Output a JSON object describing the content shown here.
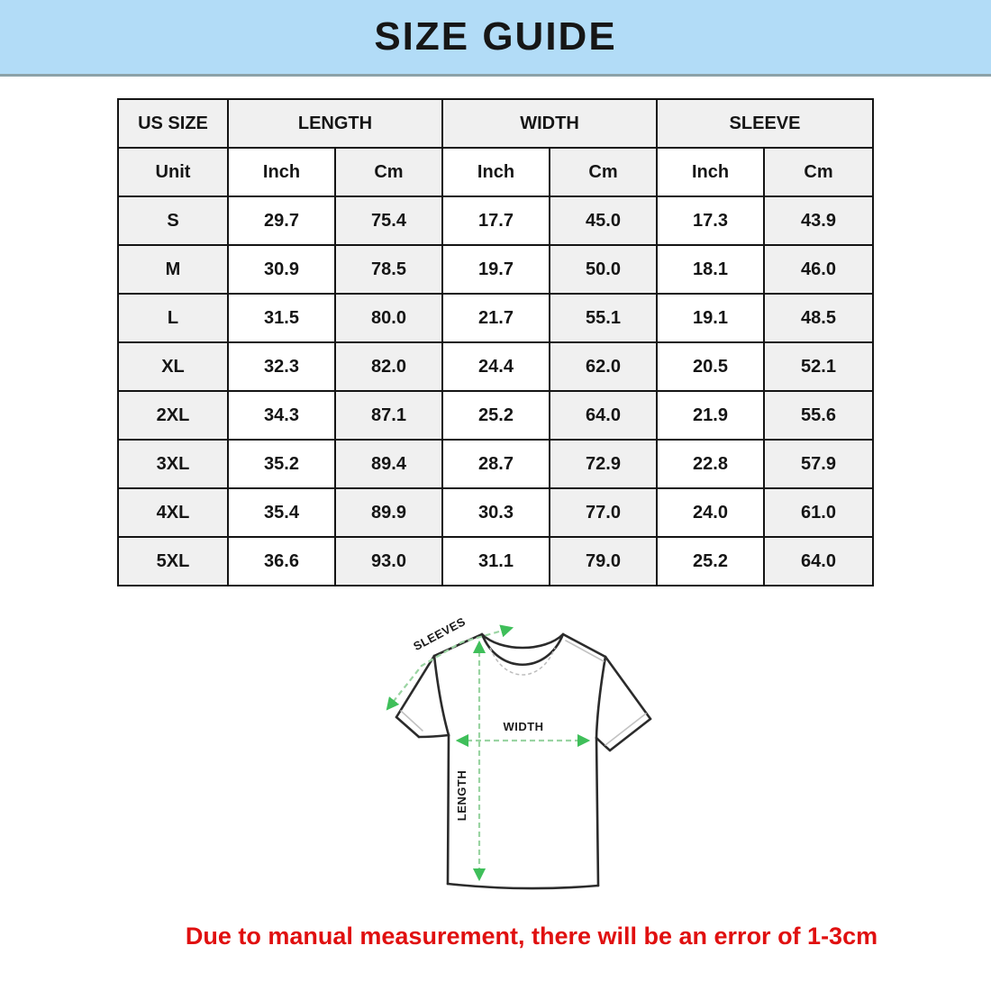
{
  "title": "SIZE GUIDE",
  "table": {
    "group_headers": [
      {
        "label": "US SIZE",
        "span": 1
      },
      {
        "label": "LENGTH",
        "span": 2
      },
      {
        "label": "WIDTH",
        "span": 2
      },
      {
        "label": "SLEEVE",
        "span": 2
      }
    ],
    "unit_row": [
      "Unit",
      "Inch",
      "Cm",
      "Inch",
      "Cm",
      "Inch",
      "Cm"
    ],
    "rows": [
      {
        "size": "S",
        "values": [
          "29.7",
          "75.4",
          "17.7",
          "45.0",
          "17.3",
          "43.9"
        ]
      },
      {
        "size": "M",
        "values": [
          "30.9",
          "78.5",
          "19.7",
          "50.0",
          "18.1",
          "46.0"
        ]
      },
      {
        "size": "L",
        "values": [
          "31.5",
          "80.0",
          "21.7",
          "55.1",
          "19.1",
          "48.5"
        ]
      },
      {
        "size": "XL",
        "values": [
          "32.3",
          "82.0",
          "24.4",
          "62.0",
          "20.5",
          "52.1"
        ]
      },
      {
        "size": "2XL",
        "values": [
          "34.3",
          "87.1",
          "25.2",
          "64.0",
          "21.9",
          "55.6"
        ]
      },
      {
        "size": "3XL",
        "values": [
          "35.2",
          "89.4",
          "28.7",
          "72.9",
          "22.8",
          "57.9"
        ]
      },
      {
        "size": "4XL",
        "values": [
          "35.4",
          "89.9",
          "30.3",
          "77.0",
          "24.0",
          "61.0"
        ]
      },
      {
        "size": "5XL",
        "values": [
          "36.6",
          "93.0",
          "31.1",
          "79.0",
          "25.2",
          "64.0"
        ]
      }
    ]
  },
  "diagram": {
    "sleeve_label": "SLEEVES",
    "width_label": "WIDTH",
    "length_label": "LENGTH"
  },
  "note": "Due to manual measurement, there will be an error of 1-3cm",
  "colors": {
    "banner_bg": "#B2DCF7",
    "banner_border": "#8CA2A8",
    "cell_gray": "#F0F0F0",
    "table_border": "#141414",
    "arrow_dash_green": "#9AD4A2",
    "arrowhead_green": "#3FBF5A",
    "note_red": "#E01010"
  }
}
